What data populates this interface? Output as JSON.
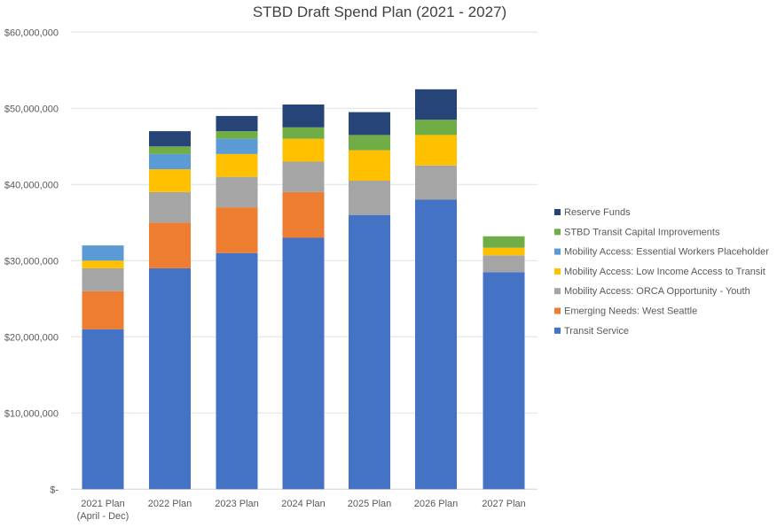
{
  "chart_data": {
    "type": "bar",
    "stacked": true,
    "title": "STBD Draft Spend Plan (2021 - 2027)",
    "xlabel": "",
    "ylabel": "",
    "ylim": [
      0,
      60000000
    ],
    "yticks": [
      0,
      10000000,
      20000000,
      30000000,
      40000000,
      50000000,
      60000000
    ],
    "ytick_labels": [
      "$-",
      "$10,000,000",
      "$20,000,000",
      "$30,000,000",
      "$40,000,000",
      "$50,000,000",
      "$60,000,000"
    ],
    "grid": true,
    "legend_position": "right",
    "categories": [
      [
        "2021 Plan",
        "(April - Dec)"
      ],
      [
        "2022 Plan"
      ],
      [
        "2023 Plan"
      ],
      [
        "2024 Plan"
      ],
      [
        "2025 Plan"
      ],
      [
        "2026 Plan"
      ],
      [
        "2027 Plan"
      ]
    ],
    "series": [
      {
        "name": "Transit Service",
        "color": "#4472C4",
        "values": [
          21000000,
          29000000,
          31000000,
          33000000,
          36000000,
          38000000,
          28500000
        ]
      },
      {
        "name": "Emerging Needs: West Seattle",
        "color": "#ED7D31",
        "values": [
          5000000,
          6000000,
          6000000,
          6000000,
          0,
          0,
          0
        ]
      },
      {
        "name": "Mobility Access: ORCA Opportunity - Youth",
        "color": "#A5A5A5",
        "values": [
          3000000,
          4000000,
          4000000,
          4000000,
          4500000,
          4500000,
          2200000
        ]
      },
      {
        "name": "Mobility Access: Low Income Access to Transit",
        "color": "#FFC000",
        "values": [
          1000000,
          3000000,
          3000000,
          3000000,
          4000000,
          4000000,
          1000000
        ]
      },
      {
        "name": "Mobility Access: Essential Workers Placeholder",
        "color": "#5B9BD5",
        "values": [
          2000000,
          2000000,
          2000000,
          0,
          0,
          0,
          0
        ]
      },
      {
        "name": "STBD Transit Capital Improvements",
        "color": "#70AD47",
        "values": [
          0,
          1000000,
          1000000,
          1500000,
          2000000,
          2000000,
          1500000
        ]
      },
      {
        "name": "Reserve Funds",
        "color": "#264478",
        "values": [
          0,
          2000000,
          2000000,
          3000000,
          3000000,
          4000000,
          0
        ]
      }
    ]
  }
}
